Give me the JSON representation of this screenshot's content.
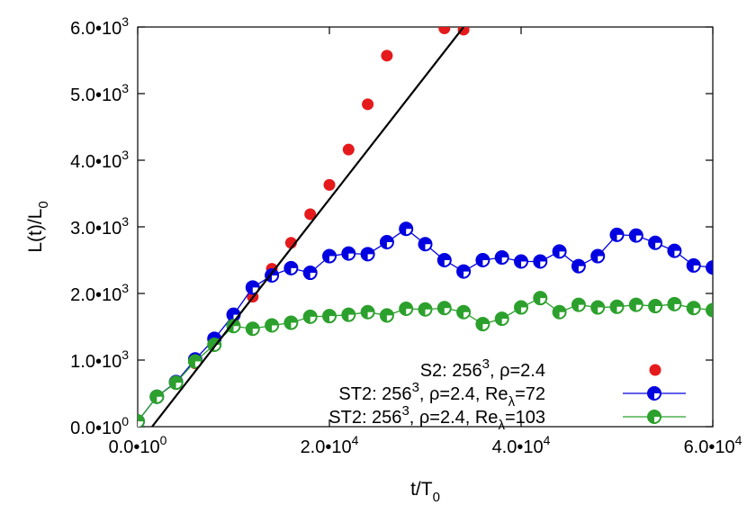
{
  "chart_data": {
    "type": "scatter",
    "xlabel": {
      "base": "t/T",
      "sub": "0"
    },
    "ylabel": {
      "base": "L(t)/L",
      "sub": "0"
    },
    "xlim": [
      0,
      60000
    ],
    "ylim": [
      0,
      6000
    ],
    "x_ticks": [
      {
        "value": 0,
        "mantissa": "0.0•10",
        "exp": "0"
      },
      {
        "value": 20000,
        "mantissa": "2.0•10",
        "exp": "4"
      },
      {
        "value": 40000,
        "mantissa": "4.0•10",
        "exp": "4"
      },
      {
        "value": 60000,
        "mantissa": "6.0•10",
        "exp": "4"
      }
    ],
    "y_ticks": [
      {
        "value": 0,
        "mantissa": "0.0•10",
        "exp": "0"
      },
      {
        "value": 1000,
        "mantissa": "1.0•10",
        "exp": "3"
      },
      {
        "value": 2000,
        "mantissa": "2.0•10",
        "exp": "3"
      },
      {
        "value": 3000,
        "mantissa": "3.0•10",
        "exp": "3"
      },
      {
        "value": 4000,
        "mantissa": "4.0•10",
        "exp": "3"
      },
      {
        "value": 5000,
        "mantissa": "5.0•10",
        "exp": "3"
      },
      {
        "value": 6000,
        "mantissa": "6.0•10",
        "exp": "3"
      }
    ],
    "grid": false,
    "legend_position": "bottom-center",
    "series": [
      {
        "legend": [
          {
            "t": "S2:   256"
          },
          {
            "t": "3",
            "sup": true
          },
          {
            "t": ", ρ=2.4"
          }
        ],
        "style": "points",
        "color": "#e41a1c",
        "x": [
          0,
          2000,
          4000,
          6000,
          8000,
          10000,
          12000,
          14000,
          16000,
          18000,
          20000,
          22000,
          24000,
          26000,
          32000,
          34000
        ],
        "y": [
          100,
          430,
          680,
          950,
          1300,
          1550,
          1950,
          2370,
          2760,
          3190,
          3630,
          4160,
          4840,
          5570,
          5980,
          5960
        ]
      },
      {
        "legend": [
          {
            "t": "ST2: 256"
          },
          {
            "t": "3",
            "sup": true
          },
          {
            "t": ", ρ=2.4, Re"
          },
          {
            "t": "λ",
            "sub": true
          },
          {
            "t": "=72"
          }
        ],
        "style": "linespoints",
        "color": "#0000e0",
        "x": [
          0,
          2000,
          4000,
          6000,
          8000,
          10000,
          12000,
          14000,
          16000,
          18000,
          20000,
          22000,
          24000,
          26000,
          28000,
          30000,
          32000,
          34000,
          36000,
          38000,
          40000,
          42000,
          44000,
          46000,
          48000,
          50000,
          52000,
          54000,
          56000,
          58000,
          60000
        ],
        "y": [
          80,
          450,
          670,
          1010,
          1320,
          1680,
          2090,
          2270,
          2380,
          2310,
          2560,
          2600,
          2590,
          2770,
          2970,
          2740,
          2500,
          2330,
          2500,
          2540,
          2480,
          2480,
          2630,
          2410,
          2560,
          2880,
          2870,
          2760,
          2640,
          2420,
          2390
        ]
      },
      {
        "legend": [
          {
            "t": "ST2: 256"
          },
          {
            "t": "3",
            "sup": true
          },
          {
            "t": ", ρ=2.4, Re"
          },
          {
            "t": "λ",
            "sub": true
          },
          {
            "t": "=103"
          }
        ],
        "style": "linespoints",
        "color": "#2ca02c",
        "x": [
          0,
          2000,
          4000,
          6000,
          8000,
          10000,
          12000,
          14000,
          16000,
          18000,
          20000,
          22000,
          24000,
          26000,
          28000,
          30000,
          32000,
          34000,
          36000,
          38000,
          40000,
          42000,
          44000,
          46000,
          48000,
          50000,
          52000,
          54000,
          56000,
          58000,
          60000
        ],
        "y": [
          80,
          450,
          660,
          980,
          1230,
          1510,
          1470,
          1520,
          1560,
          1650,
          1660,
          1680,
          1720,
          1670,
          1770,
          1760,
          1780,
          1720,
          1540,
          1620,
          1790,
          1930,
          1720,
          1830,
          1790,
          1800,
          1830,
          1810,
          1840,
          1780,
          1750
        ]
      },
      {
        "style": "line",
        "color": "#000000",
        "x": [
          1500,
          34000
        ],
        "y": [
          0,
          6000
        ]
      }
    ]
  }
}
